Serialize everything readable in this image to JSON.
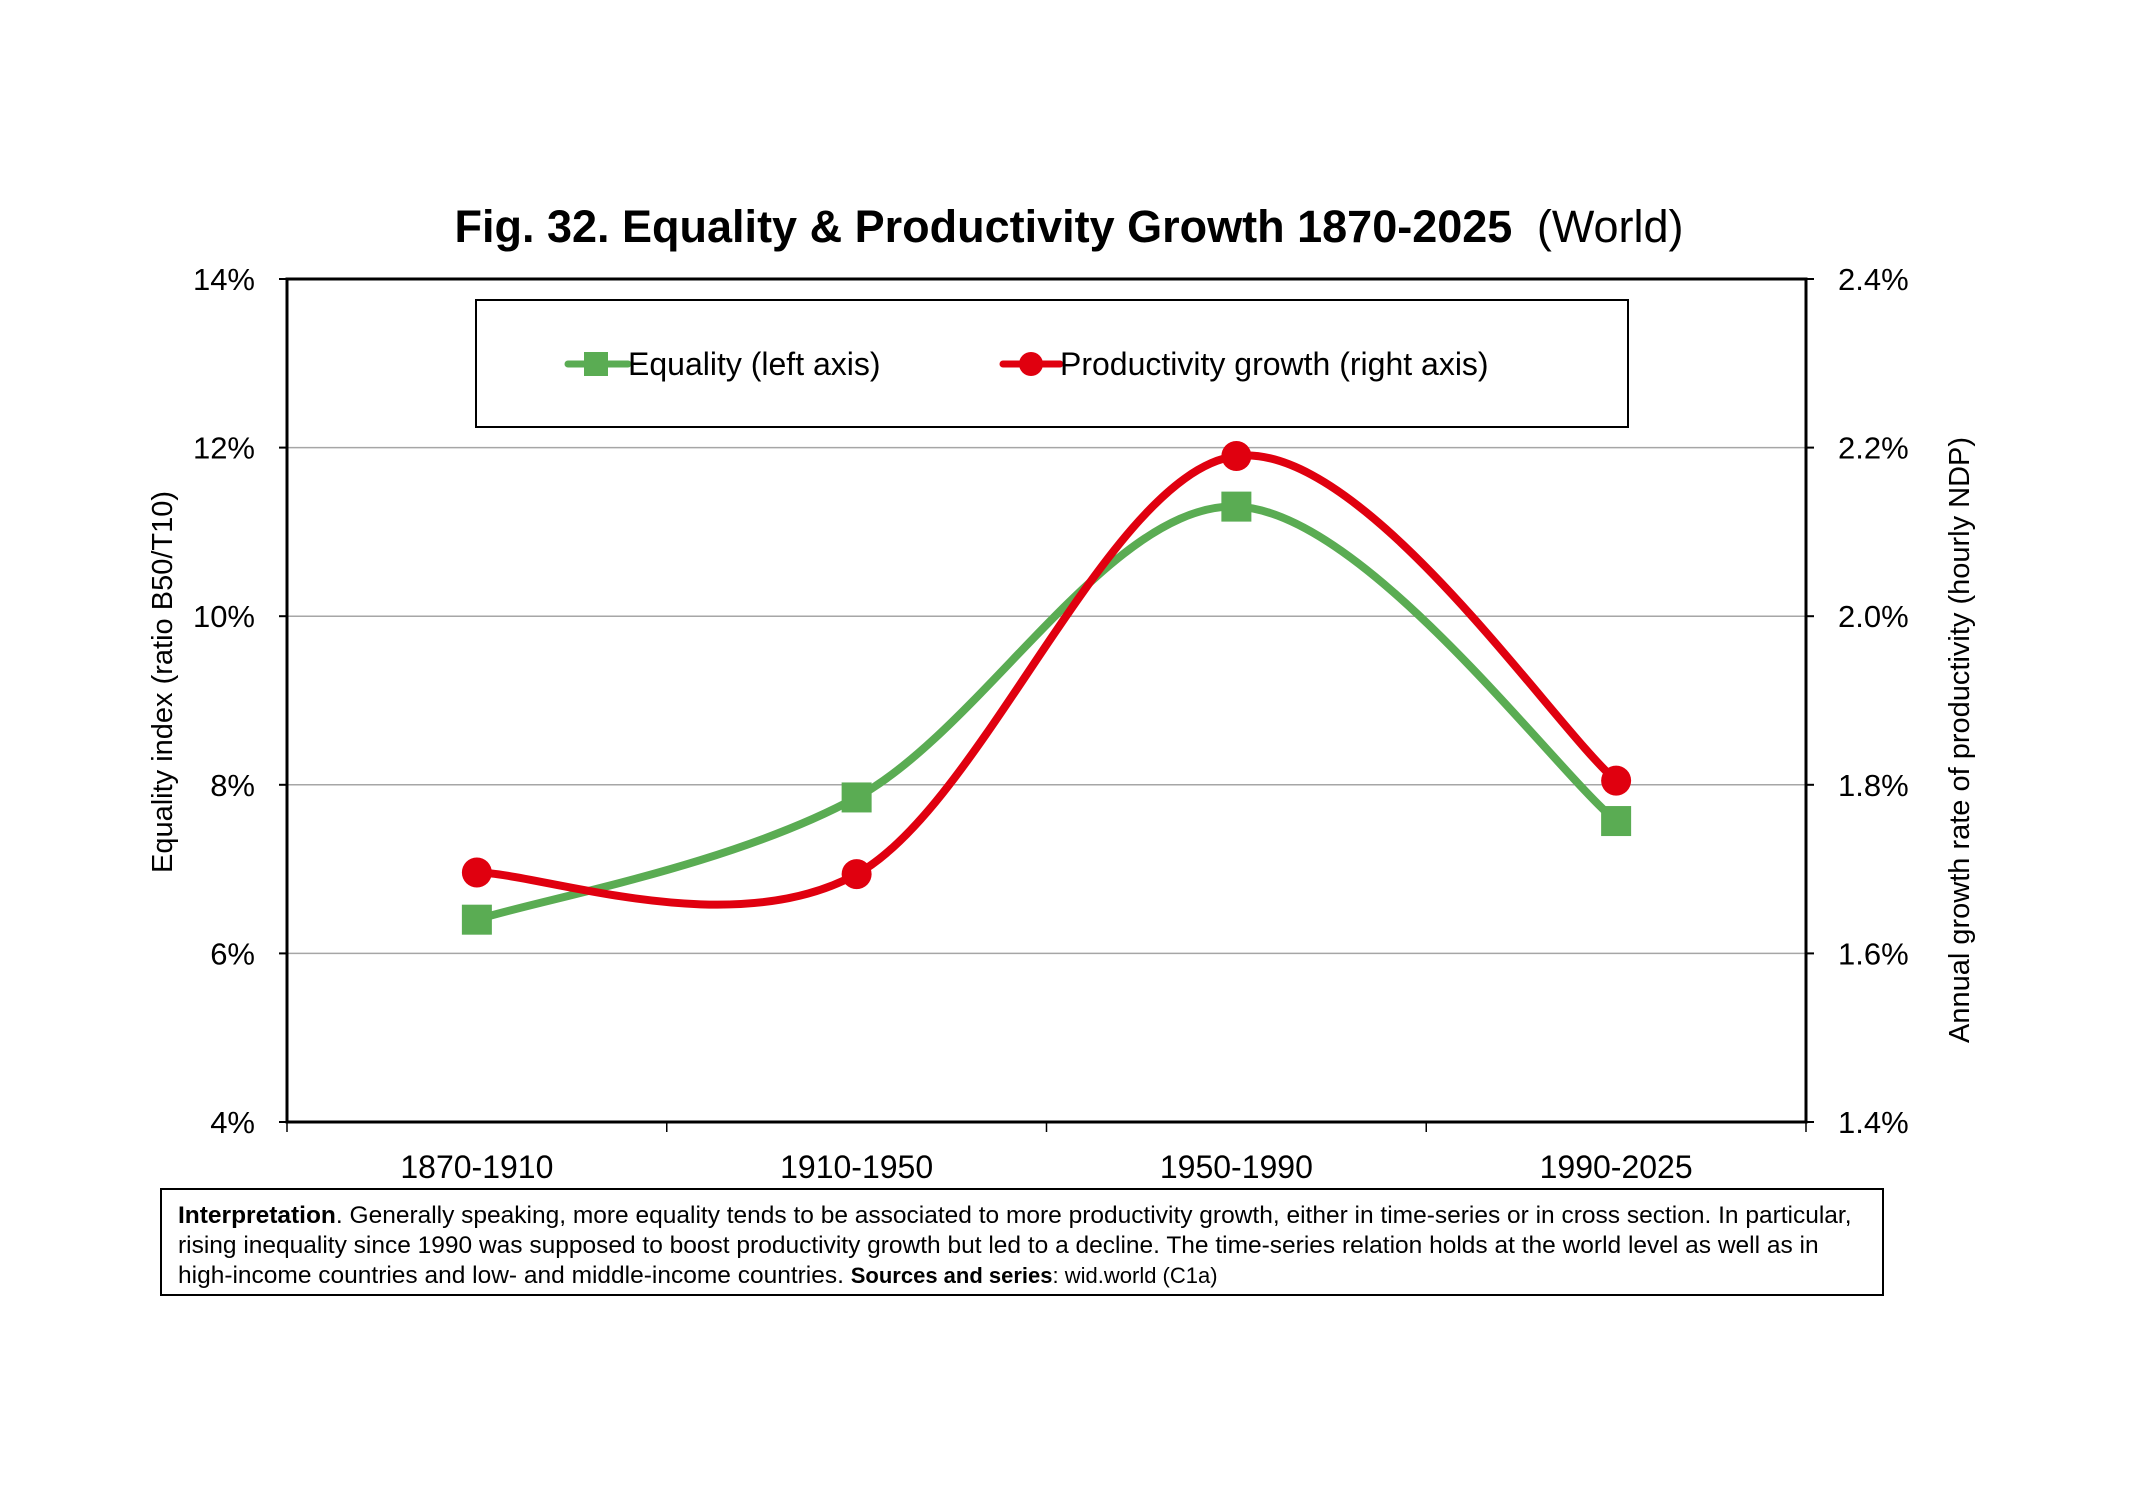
{
  "chart_data": {
    "type": "line",
    "title": "Fig. 32. Equality & Productivity Growth 1870-2025",
    "title_suffix": "(World)",
    "categories": [
      "1870-1910",
      "1910-1950",
      "1950-1990",
      "1990-2025"
    ],
    "ylabel_left": "Equality index (ratio B50/T10)",
    "ylabel_right": "Annual growth rate of productivity (hourly NDP)",
    "ylim_left": [
      0.04,
      0.14
    ],
    "ylim_right": [
      1.4,
      2.4
    ],
    "yticks_left": [
      "4%",
      "6%",
      "8%",
      "10%",
      "12%",
      "14%"
    ],
    "yticks_right": [
      "1.4%",
      "1.6%",
      "1.8%",
      "2.0%",
      "2.2%",
      "2.4%"
    ],
    "grid": true,
    "legend_position": "top-center",
    "series": [
      {
        "name": "Equality (left axis)",
        "axis": "left",
        "color": "#5aac53",
        "marker": "square",
        "values": [
          0.064,
          0.0785,
          0.113,
          0.0757
        ]
      },
      {
        "name": "Productivity growth (right axis)",
        "axis": "right",
        "color": "#e0000f",
        "marker": "circle",
        "values": [
          1.696,
          1.694,
          2.19,
          1.805
        ]
      }
    ]
  },
  "note": {
    "interpretation_label": "Interpretation",
    "interpretation_text": ". Generally speaking, more equality tends to be associated to more productivity growth, either in time-series or in cross section. In particular, rising inequality since 1990 was supposed to boost productivity growth but led to a decline. The time-series relation holds at the world level as well as in high-income countries and low- and middle-income countries. ",
    "sources_label": "Sources and series",
    "sources_text": ": wid.world (C1a)"
  }
}
